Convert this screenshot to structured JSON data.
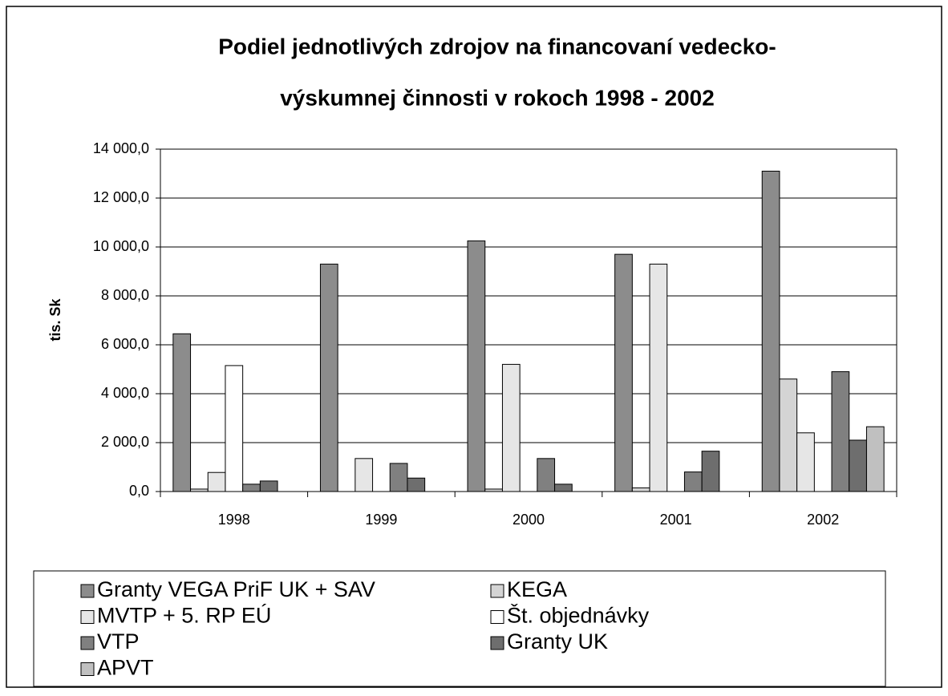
{
  "chart_data": {
    "type": "bar",
    "title": [
      "Podiel jednotlivých zdrojov na financovaní vedecko-",
      "výskumnej činnosti v rokoch 1998 - 2002"
    ],
    "ylabel": "tis. Sk",
    "categories": [
      "1998",
      "1999",
      "2000",
      "2001",
      "2002"
    ],
    "series": [
      {
        "name": "Granty VEGA PriF UK + SAV",
        "color": "#8c8c8c",
        "values": [
          6450,
          9300,
          10250,
          9700,
          13100
        ]
      },
      {
        "name": "KEGA",
        "color": "#d4d4d4",
        "values": [
          100,
          0,
          100,
          150,
          4600
        ]
      },
      {
        "name": "MVTP + 5. RP EÚ",
        "color": "#e6e6e6",
        "values": [
          780,
          1350,
          5200,
          9300,
          2400
        ]
      },
      {
        "name": "Št. objednávky",
        "color": "#ffffff",
        "values": [
          5150,
          0,
          0,
          0,
          0
        ]
      },
      {
        "name": "VTP",
        "color": "#808080",
        "values": [
          300,
          1150,
          1350,
          800,
          4900
        ]
      },
      {
        "name": "Granty UK",
        "color": "#6e6e6e",
        "values": [
          430,
          550,
          300,
          1650,
          2100
        ]
      },
      {
        "name": "APVT",
        "color": "#c0c0c0",
        "values": [
          0,
          0,
          0,
          0,
          2650
        ]
      }
    ],
    "ylim": [
      0,
      14000
    ],
    "yticks": [
      {
        "value": 0,
        "label": "0,0"
      },
      {
        "value": 2000,
        "label": "2 000,0"
      },
      {
        "value": 4000,
        "label": "4 000,0"
      },
      {
        "value": 6000,
        "label": "6 000,0"
      },
      {
        "value": 8000,
        "label": "8 000,0"
      },
      {
        "value": 10000,
        "label": "10 000,0"
      },
      {
        "value": 12000,
        "label": "12 000,0"
      },
      {
        "value": 14000,
        "label": "14 000,0"
      }
    ],
    "grid": true
  }
}
